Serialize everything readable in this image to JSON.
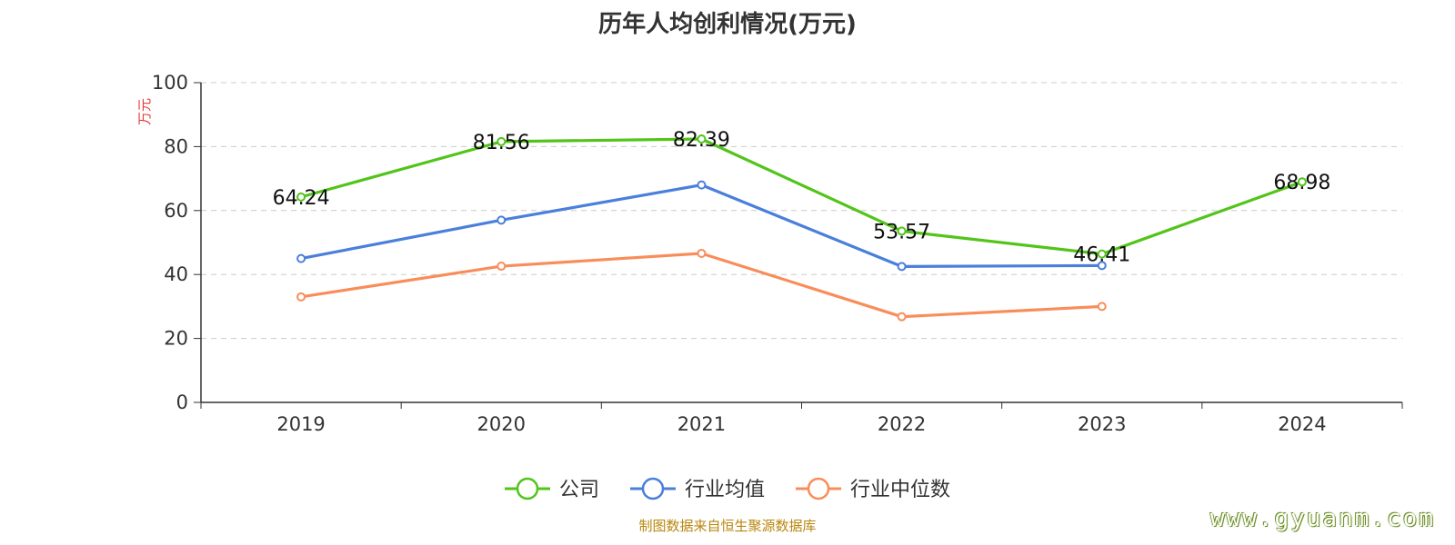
{
  "chart_data": {
    "type": "line",
    "title": "历年人均创利情况(万元)",
    "ylabel": "万元",
    "categories": [
      "2019",
      "2020",
      "2021",
      "2022",
      "2023",
      "2024"
    ],
    "ylim": [
      0,
      100
    ],
    "yticks": [
      0,
      20,
      40,
      60,
      80,
      100
    ],
    "grid": true,
    "legend_position": "bottom",
    "series": [
      {
        "name": "公司",
        "color": "#52c41a",
        "values": [
          64.24,
          81.56,
          82.39,
          53.57,
          46.41,
          68.98
        ],
        "show_labels": true
      },
      {
        "name": "行业均值",
        "color": "#4a7fdb",
        "values": [
          45,
          57,
          68,
          42.5,
          42.8,
          null
        ],
        "show_labels": false
      },
      {
        "name": "行业中位数",
        "color": "#f98d5a",
        "values": [
          33,
          42.6,
          46.6,
          26.8,
          30,
          null
        ],
        "show_labels": false
      }
    ]
  },
  "footer": {
    "source": "制图数据来自恒生聚源数据库",
    "watermark": "www.gyuanm.com"
  }
}
